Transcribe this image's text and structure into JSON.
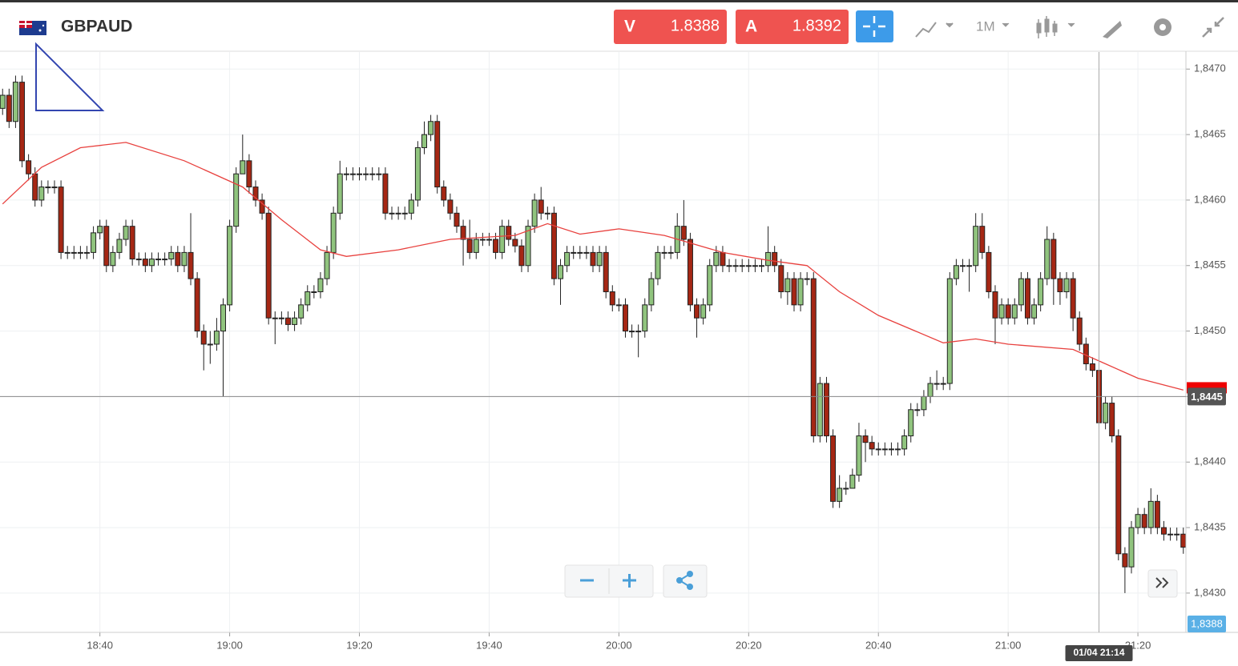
{
  "ui": {
    "symbol": "GBPAUD",
    "sell": {
      "letter": "V",
      "price": "1.8388"
    },
    "buy": {
      "letter": "A",
      "price": "1.8392"
    },
    "timeframe": "1M",
    "bid_label": "1,8388"
  },
  "chart_data": {
    "type": "candlestick",
    "up_color": "#90c47e",
    "down_color": "#a52714",
    "xlim": [
      1104.6,
      1287.4
    ],
    "xticks": [
      {
        "value": 1120,
        "label": "18:40"
      },
      {
        "value": 1140,
        "label": "19:00"
      },
      {
        "value": 1160,
        "label": "19:20"
      },
      {
        "value": 1180,
        "label": "19:40"
      },
      {
        "value": 1200,
        "label": "20:00"
      },
      {
        "value": 1220,
        "label": "20:20"
      },
      {
        "value": 1240,
        "label": "20:40"
      },
      {
        "value": 1260,
        "label": "21:00"
      },
      {
        "value": 1280,
        "label": "21:20"
      }
    ],
    "ylim": [
      1.8427,
      1.84713
    ],
    "yticks": [
      {
        "value": 1.843,
        "label": "1,8430"
      },
      {
        "value": 1.8435,
        "label": "1,8435"
      },
      {
        "value": 1.844,
        "label": "1,8440"
      },
      {
        "value": 1.8445,
        "label": "1,8445"
      },
      {
        "value": 1.845,
        "label": "1,8450"
      },
      {
        "value": 1.8455,
        "label": "1,8455"
      },
      {
        "value": 1.846,
        "label": "1,8460"
      },
      {
        "value": 1.8465,
        "label": "1,8465"
      },
      {
        "value": 1.847,
        "label": "1,8470"
      }
    ],
    "grid": true,
    "crosshair": {
      "x": 1274,
      "y": 1.8445,
      "x_label": "01/04 21:14",
      "y_label": "1,8445"
    },
    "x": [
      1105,
      1106,
      1107,
      1108,
      1109,
      1110,
      1111,
      1112,
      1113,
      1114,
      1115,
      1116,
      1117,
      1118,
      1119,
      1120,
      1121,
      1122,
      1123,
      1124,
      1125,
      1126,
      1127,
      1128,
      1129,
      1130,
      1131,
      1132,
      1133,
      1134,
      1135,
      1136,
      1137,
      1138,
      1139,
      1140,
      1141,
      1142,
      1143,
      1144,
      1145,
      1146,
      1147,
      1148,
      1149,
      1150,
      1151,
      1152,
      1153,
      1154,
      1155,
      1156,
      1157,
      1158,
      1159,
      1160,
      1161,
      1162,
      1163,
      1164,
      1165,
      1166,
      1167,
      1168,
      1169,
      1170,
      1171,
      1172,
      1173,
      1174,
      1175,
      1176,
      1177,
      1178,
      1179,
      1180,
      1181,
      1182,
      1183,
      1184,
      1185,
      1186,
      1187,
      1188,
      1189,
      1190,
      1191,
      1192,
      1193,
      1194,
      1195,
      1196,
      1197,
      1198,
      1199,
      1200,
      1201,
      1202,
      1203,
      1204,
      1205,
      1206,
      1207,
      1208,
      1209,
      1210,
      1211,
      1212,
      1213,
      1214,
      1215,
      1216,
      1217,
      1218,
      1219,
      1220,
      1221,
      1222,
      1223,
      1224,
      1225,
      1226,
      1227,
      1228,
      1229,
      1230,
      1231,
      1232,
      1233,
      1234,
      1235,
      1236,
      1237,
      1238,
      1239,
      1240,
      1241,
      1242,
      1243,
      1244,
      1245,
      1246,
      1247,
      1248,
      1249,
      1250,
      1251,
      1252,
      1253,
      1254,
      1255,
      1256,
      1257,
      1258,
      1259,
      1260,
      1261,
      1262,
      1263,
      1264,
      1265,
      1266,
      1267,
      1268,
      1269,
      1270,
      1271,
      1272,
      1273,
      1274,
      1275,
      1276,
      1277,
      1278,
      1279,
      1280,
      1281,
      1282,
      1283,
      1284,
      1285,
      1286,
      1287
    ],
    "open": [
      1.8467,
      1.8468,
      1.8466,
      1.8469,
      1.8463,
      1.8462,
      1.846,
      1.8461,
      1.8461,
      1.8461,
      1.8456,
      1.8456,
      1.8456,
      1.8456,
      1.8456,
      1.84575,
      1.8458,
      1.8455,
      1.8456,
      1.8457,
      1.8458,
      1.84555,
      1.84555,
      1.8455,
      1.84555,
      1.84555,
      1.84555,
      1.8456,
      1.8455,
      1.8456,
      1.8454,
      1.845,
      1.8449,
      1.8449,
      1.845,
      1.8452,
      1.8458,
      1.8462,
      1.8463,
      1.8461,
      1.846,
      1.8459,
      1.8451,
      1.8451,
      1.8451,
      1.84505,
      1.8451,
      1.8452,
      1.8453,
      1.8453,
      1.8454,
      1.8456,
      1.8459,
      1.8462,
      1.8462,
      1.8462,
      1.8462,
      1.8462,
      1.8462,
      1.8462,
      1.8459,
      1.8459,
      1.8459,
      1.8459,
      1.846,
      1.8464,
      1.8465,
      1.8466,
      1.8461,
      1.846,
      1.8459,
      1.8458,
      1.8457,
      1.8456,
      1.8457,
      1.8457,
      1.8457,
      1.8456,
      1.8458,
      1.8457,
      1.84565,
      1.8455,
      1.8458,
      1.846,
      1.8459,
      1.8459,
      1.8454,
      1.8455,
      1.8456,
      1.8456,
      1.8456,
      1.8456,
      1.8455,
      1.8456,
      1.8453,
      1.8452,
      1.8452,
      1.845,
      1.845,
      1.845,
      1.8452,
      1.8454,
      1.8456,
      1.8456,
      1.8456,
      1.8458,
      1.8457,
      1.8452,
      1.8451,
      1.8452,
      1.8455,
      1.8456,
      1.8455,
      1.8455,
      1.8455,
      1.8455,
      1.8455,
      1.8455,
      1.8455,
      1.8456,
      1.8455,
      1.8453,
      1.8454,
      1.8452,
      1.8454,
      1.8454,
      1.8442,
      1.8446,
      1.8442,
      1.8437,
      1.8438,
      1.8438,
      1.8439,
      1.8442,
      1.84415,
      1.8441,
      1.8441,
      1.8441,
      1.8441,
      1.8441,
      1.8442,
      1.8444,
      1.8444,
      1.8445,
      1.8446,
      1.8446,
      1.8446,
      1.8454,
      1.8455,
      1.8455,
      1.8455,
      1.8458,
      1.8456,
      1.8453,
      1.8451,
      1.8452,
      1.8451,
      1.8452,
      1.8454,
      1.8451,
      1.8452,
      1.8454,
      1.8457,
      1.8454,
      1.8453,
      1.8454,
      1.8451,
      1.8449,
      1.84475,
      1.8447,
      1.8443,
      1.84445,
      1.8442,
      1.8433,
      1.8432,
      1.8435,
      1.8436,
      1.8435,
      1.8437,
      1.8435,
      1.84345,
      1.84345,
      1.84345
    ],
    "high": [
      1.84685,
      1.84685,
      1.84695,
      1.84695,
      1.84635,
      1.84625,
      1.84615,
      1.84615,
      1.84615,
      1.84615,
      1.84565,
      1.84565,
      1.84565,
      1.84565,
      1.8458,
      1.84585,
      1.84585,
      1.84565,
      1.84575,
      1.84585,
      1.84585,
      1.8456,
      1.8456,
      1.8456,
      1.8456,
      1.8456,
      1.84565,
      1.84565,
      1.84565,
      1.8459,
      1.84545,
      1.84505,
      1.845,
      1.8451,
      1.84525,
      1.84585,
      1.84625,
      1.8465,
      1.84635,
      1.84615,
      1.84605,
      1.84595,
      1.84515,
      1.84515,
      1.84515,
      1.84515,
      1.84525,
      1.84535,
      1.84535,
      1.84545,
      1.84565,
      1.84595,
      1.8463,
      1.84625,
      1.84625,
      1.84625,
      1.84625,
      1.84625,
      1.84625,
      1.84625,
      1.84595,
      1.84595,
      1.84595,
      1.84605,
      1.84645,
      1.8466,
      1.84665,
      1.84665,
      1.84615,
      1.84605,
      1.84595,
      1.84585,
      1.84585,
      1.84575,
      1.84575,
      1.84575,
      1.84575,
      1.84585,
      1.84585,
      1.84575,
      1.8457,
      1.84585,
      1.84605,
      1.8461,
      1.84595,
      1.84595,
      1.84555,
      1.84565,
      1.84565,
      1.84565,
      1.84565,
      1.84565,
      1.84565,
      1.84565,
      1.84535,
      1.84525,
      1.84525,
      1.84505,
      1.84505,
      1.84525,
      1.84545,
      1.84565,
      1.84565,
      1.84565,
      1.8459,
      1.846,
      1.84575,
      1.84525,
      1.84525,
      1.84555,
      1.84565,
      1.84565,
      1.84555,
      1.84555,
      1.84555,
      1.84555,
      1.84555,
      1.84555,
      1.8458,
      1.84565,
      1.84555,
      1.84545,
      1.84545,
      1.84545,
      1.84545,
      1.84545,
      1.84465,
      1.84465,
      1.84425,
      1.8439,
      1.84385,
      1.84395,
      1.8443,
      1.84425,
      1.8442,
      1.84415,
      1.84415,
      1.84415,
      1.84415,
      1.84425,
      1.84445,
      1.84445,
      1.84455,
      1.84465,
      1.8447,
      1.84465,
      1.84545,
      1.84555,
      1.84555,
      1.84555,
      1.8459,
      1.8459,
      1.84565,
      1.84535,
      1.84525,
      1.84525,
      1.84525,
      1.84545,
      1.84545,
      1.84525,
      1.84545,
      1.8458,
      1.84575,
      1.84545,
      1.84545,
      1.84545,
      1.84515,
      1.84495,
      1.8448,
      1.8448,
      1.8445,
      1.8445,
      1.84425,
      1.84335,
      1.84355,
      1.84365,
      1.84365,
      1.8438,
      1.84375,
      1.84355,
      1.8435,
      1.8435,
      1.8435
    ],
    "low": [
      1.84665,
      1.84655,
      1.84655,
      1.84625,
      1.84615,
      1.84595,
      1.84595,
      1.84605,
      1.84605,
      1.84555,
      1.84555,
      1.84555,
      1.84555,
      1.84555,
      1.84555,
      1.8457,
      1.84545,
      1.84545,
      1.84555,
      1.84565,
      1.8455,
      1.8455,
      1.84545,
      1.84545,
      1.8455,
      1.8455,
      1.8455,
      1.84545,
      1.84545,
      1.84535,
      1.84495,
      1.8447,
      1.84475,
      1.84485,
      1.8445,
      1.84515,
      1.84575,
      1.8462,
      1.84605,
      1.84595,
      1.84585,
      1.84505,
      1.8449,
      1.84505,
      1.845,
      1.845,
      1.84505,
      1.84515,
      1.84525,
      1.84525,
      1.84535,
      1.84555,
      1.84585,
      1.84615,
      1.84615,
      1.84615,
      1.84615,
      1.84615,
      1.84615,
      1.84585,
      1.84585,
      1.84585,
      1.84585,
      1.84585,
      1.84595,
      1.84635,
      1.84645,
      1.84605,
      1.84595,
      1.84585,
      1.84575,
      1.8455,
      1.84555,
      1.84555,
      1.84565,
      1.84565,
      1.84555,
      1.84555,
      1.84565,
      1.8456,
      1.84545,
      1.84545,
      1.84575,
      1.84585,
      1.84585,
      1.84535,
      1.8452,
      1.84545,
      1.84555,
      1.84555,
      1.84555,
      1.84545,
      1.84545,
      1.84525,
      1.84515,
      1.84515,
      1.84495,
      1.84495,
      1.8448,
      1.84495,
      1.84515,
      1.84535,
      1.84555,
      1.84555,
      1.84555,
      1.84565,
      1.84515,
      1.84495,
      1.84505,
      1.84515,
      1.84545,
      1.84545,
      1.84545,
      1.84545,
      1.84545,
      1.84545,
      1.84545,
      1.84545,
      1.84545,
      1.84545,
      1.84525,
      1.8452,
      1.84515,
      1.84515,
      1.84535,
      1.84415,
      1.84415,
      1.84415,
      1.84365,
      1.84365,
      1.84375,
      1.8438,
      1.84385,
      1.844,
      1.84405,
      1.84405,
      1.84405,
      1.84405,
      1.84405,
      1.84405,
      1.84415,
      1.84435,
      1.84435,
      1.84445,
      1.84455,
      1.84455,
      1.84455,
      1.84535,
      1.84545,
      1.8453,
      1.84545,
      1.84555,
      1.84525,
      1.8449,
      1.84505,
      1.84505,
      1.84505,
      1.84515,
      1.84505,
      1.84505,
      1.84515,
      1.84535,
      1.8452,
      1.8452,
      1.84525,
      1.845,
      1.84485,
      1.8447,
      1.84465,
      1.84425,
      1.84425,
      1.84415,
      1.84325,
      1.843,
      1.84315,
      1.84345,
      1.84345,
      1.84345,
      1.84345,
      1.8434,
      1.8434,
      1.8434,
      1.8433
    ],
    "close": [
      1.8468,
      1.8466,
      1.8469,
      1.8463,
      1.8462,
      1.846,
      1.8461,
      1.8461,
      1.8461,
      1.8456,
      1.8456,
      1.8456,
      1.8456,
      1.8456,
      1.84575,
      1.8458,
      1.8455,
      1.8456,
      1.8457,
      1.8458,
      1.84555,
      1.84555,
      1.8455,
      1.84555,
      1.84555,
      1.84555,
      1.8456,
      1.8455,
      1.8456,
      1.8454,
      1.845,
      1.8449,
      1.8449,
      1.845,
      1.8452,
      1.8458,
      1.8462,
      1.8463,
      1.8461,
      1.846,
      1.8459,
      1.8451,
      1.8451,
      1.8451,
      1.84505,
      1.8451,
      1.8452,
      1.8453,
      1.8453,
      1.8454,
      1.8456,
      1.8459,
      1.8462,
      1.8462,
      1.8462,
      1.8462,
      1.8462,
      1.8462,
      1.8462,
      1.8459,
      1.8459,
      1.8459,
      1.8459,
      1.846,
      1.8464,
      1.8465,
      1.8466,
      1.8461,
      1.846,
      1.8459,
      1.8458,
      1.8457,
      1.8456,
      1.8457,
      1.8457,
      1.8457,
      1.8456,
      1.8458,
      1.8457,
      1.84565,
      1.8455,
      1.8458,
      1.846,
      1.8459,
      1.8459,
      1.8454,
      1.8455,
      1.8456,
      1.8456,
      1.8456,
      1.8456,
      1.8455,
      1.8456,
      1.8453,
      1.8452,
      1.8452,
      1.845,
      1.845,
      1.845,
      1.8452,
      1.8454,
      1.8456,
      1.8456,
      1.8456,
      1.8458,
      1.8457,
      1.8452,
      1.8451,
      1.8452,
      1.8455,
      1.8456,
      1.8455,
      1.8455,
      1.8455,
      1.8455,
      1.8455,
      1.8455,
      1.8455,
      1.8456,
      1.8455,
      1.8453,
      1.8454,
      1.8452,
      1.8454,
      1.8454,
      1.8442,
      1.8446,
      1.8442,
      1.8437,
      1.8438,
      1.8438,
      1.8439,
      1.8442,
      1.84415,
      1.8441,
      1.8441,
      1.8441,
      1.8441,
      1.8441,
      1.8442,
      1.8444,
      1.8444,
      1.8445,
      1.8446,
      1.8446,
      1.8446,
      1.8454,
      1.8455,
      1.8455,
      1.8455,
      1.8458,
      1.8456,
      1.8453,
      1.8451,
      1.8452,
      1.8451,
      1.8452,
      1.8454,
      1.8451,
      1.8452,
      1.8454,
      1.8457,
      1.8454,
      1.8453,
      1.8454,
      1.8451,
      1.8449,
      1.84475,
      1.8447,
      1.8443,
      1.84445,
      1.8442,
      1.8433,
      1.8432,
      1.8435,
      1.8436,
      1.8435,
      1.8437,
      1.8435,
      1.84345,
      1.84345,
      1.84345,
      1.84335
    ],
    "ma": {
      "color": "#e8413e",
      "x": [
        1105,
        1111,
        1117,
        1124,
        1133,
        1142,
        1148,
        1154,
        1158,
        1166,
        1174,
        1184,
        1189,
        1194,
        1200,
        1207,
        1216,
        1223,
        1229,
        1234,
        1240,
        1250,
        1255,
        1260,
        1270,
        1275,
        1280,
        1287
      ],
      "values": [
        1.84597,
        1.84625,
        1.8464,
        1.84644,
        1.8463,
        1.8461,
        1.84585,
        1.84562,
        1.84557,
        1.84562,
        1.8457,
        1.84573,
        1.84582,
        1.84574,
        1.84578,
        1.84573,
        1.8456,
        1.84554,
        1.8455,
        1.8453,
        1.84512,
        1.84491,
        1.84494,
        1.8449,
        1.84486,
        1.84475,
        1.84464,
        1.84455
      ]
    }
  }
}
